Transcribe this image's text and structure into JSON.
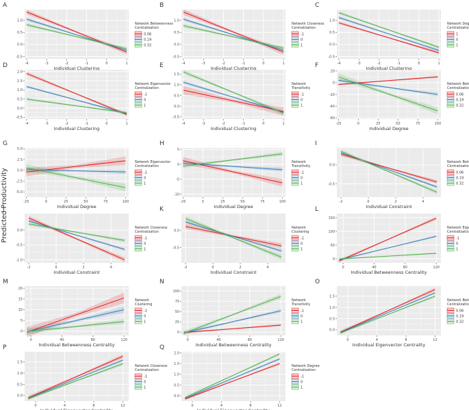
{
  "figure": {
    "ylabel": "Predicted Productivity"
  },
  "chart_data": [
    {
      "id": "A",
      "type": "line",
      "xlabel": "Individual Clustering",
      "xlim": [
        -4.1,
        1.1
      ],
      "xticks": [
        -4,
        -3,
        -2,
        -1,
        0,
        1
      ],
      "ylim": [
        -0.6,
        1.45
      ],
      "yticks": [
        -0.5,
        0.0,
        0.5,
        1.0
      ],
      "legend_title": "Network Betweenness Centralization",
      "series": [
        {
          "name": "0.06",
          "x": [
            -4,
            1
          ],
          "y": [
            1.35,
            -0.32
          ],
          "band": 0.1
        },
        {
          "name": "0.19",
          "x": [
            -4,
            1
          ],
          "y": [
            1.05,
            -0.25
          ],
          "band": 0.07
        },
        {
          "name": "0.32",
          "x": [
            -4,
            1
          ],
          "y": [
            0.82,
            -0.18
          ],
          "band": 0.07
        }
      ]
    },
    {
      "id": "B",
      "type": "line",
      "xlabel": "Individual Clustering",
      "xlim": [
        -4.1,
        1.1
      ],
      "xticks": [
        -4,
        -3,
        -2,
        -1,
        0,
        1
      ],
      "ylim": [
        -0.6,
        1.45
      ],
      "yticks": [
        -0.5,
        0.0,
        0.5,
        1.0
      ],
      "legend_title": "Network Closeness Centralization",
      "series": [
        {
          "name": "-1",
          "x": [
            -4,
            1
          ],
          "y": [
            1.35,
            -0.32
          ],
          "band": 0.12
        },
        {
          "name": "0",
          "x": [
            -4,
            1
          ],
          "y": [
            1.05,
            -0.25
          ],
          "band": 0.07
        },
        {
          "name": "1",
          "x": [
            -4,
            1
          ],
          "y": [
            0.78,
            -0.15
          ],
          "band": 0.08
        }
      ]
    },
    {
      "id": "C",
      "type": "line",
      "xlabel": "Individual Clustering",
      "xlim": [
        -4.1,
        1.1
      ],
      "xticks": [
        -4,
        -3,
        -2,
        -1,
        0,
        1
      ],
      "ylim": [
        -0.6,
        1.45
      ],
      "yticks": [
        -0.5,
        0.0,
        0.5,
        1.0
      ],
      "legend_title": "Network Degree Centralization",
      "series": [
        {
          "name": "1",
          "x": [
            -4,
            1
          ],
          "y": [
            0.9,
            -0.35
          ],
          "band": 0.06
        },
        {
          "name": "0",
          "x": [
            -4,
            1
          ],
          "y": [
            1.12,
            -0.25
          ],
          "band": 0.06
        },
        {
          "name": "1",
          "x": [
            -4,
            1
          ],
          "y": [
            1.32,
            -0.12
          ],
          "band": 0.06
        }
      ]
    },
    {
      "id": "D",
      "type": "line",
      "xlabel": "Individual Clustering",
      "xlim": [
        -4.1,
        1.1
      ],
      "xticks": [
        -4,
        -3,
        -2,
        -1,
        0,
        1
      ],
      "ylim": [
        -0.6,
        2.1
      ],
      "yticks": [
        -0.5,
        0.0,
        0.5,
        1.0,
        1.5,
        2.0
      ],
      "legend_title": "Network Eigenvector Centralization",
      "series": [
        {
          "name": "-1",
          "x": [
            -4,
            1
          ],
          "y": [
            1.9,
            -0.35
          ],
          "band": 0.1
        },
        {
          "name": "0",
          "x": [
            -4,
            1
          ],
          "y": [
            1.18,
            -0.3
          ],
          "band": 0.07
        },
        {
          "name": "1",
          "x": [
            -4,
            1
          ],
          "y": [
            0.5,
            -0.25
          ],
          "band": 0.08
        }
      ]
    },
    {
      "id": "E",
      "type": "line",
      "xlabel": "Individual Clustering",
      "xlim": [
        -4.1,
        1.1
      ],
      "xticks": [
        -4,
        -3,
        -2,
        -1,
        0,
        1
      ],
      "ylim": [
        -0.6,
        1.7
      ],
      "yticks": [
        -0.5,
        0.0,
        0.5,
        1.0,
        1.5
      ],
      "legend_title": "Network Transitivity",
      "series": [
        {
          "name": "-1",
          "x": [
            -4,
            1
          ],
          "y": [
            0.75,
            -0.25
          ],
          "band": 0.2
        },
        {
          "name": "0",
          "x": [
            -4,
            1
          ],
          "y": [
            1.12,
            -0.28
          ],
          "band": 0.08
        },
        {
          "name": "1",
          "x": [
            -4,
            1
          ],
          "y": [
            1.6,
            -0.32
          ],
          "band": 0.1
        }
      ]
    },
    {
      "id": "F",
      "type": "line",
      "xlabel": "Individual Degree",
      "xlim": [
        -27,
        104
      ],
      "xticks": [
        -25,
        0,
        25,
        50,
        75,
        100
      ],
      "ylim": [
        -62,
        22
      ],
      "yticks": [
        -60,
        -40,
        -20,
        0,
        20
      ],
      "legend_title": "Network Betweenness Centralization",
      "series": [
        {
          "name": "0.06",
          "x": [
            -25,
            100
          ],
          "y": [
            -3,
            10
          ],
          "band": 2
        },
        {
          "name": "0.19",
          "x": [
            -25,
            100
          ],
          "y": [
            4,
            -20
          ],
          "band": 3
        },
        {
          "name": "0.32",
          "x": [
            -25,
            100
          ],
          "y": [
            10,
            -48
          ],
          "band": 6
        }
      ]
    },
    {
      "id": "G",
      "type": "line",
      "xlabel": "Individual Degree",
      "xlim": [
        -27,
        104
      ],
      "xticks": [
        -25,
        0,
        25,
        50,
        75,
        100
      ],
      "ylim": [
        -6.2,
        5.2
      ],
      "yticks": [
        -5.0,
        -2.5,
        0.0,
        2.5,
        5.0
      ],
      "legend_title": "Network Eigenvector Centralization",
      "series": [
        {
          "name": "-1",
          "x": [
            -25,
            100
          ],
          "y": [
            -0.4,
            2.2
          ],
          "band": 1.0
        },
        {
          "name": "0",
          "x": [
            -25,
            100
          ],
          "y": [
            0.15,
            -0.35
          ],
          "band": 0.5
        },
        {
          "name": "1",
          "x": [
            -25,
            100
          ],
          "y": [
            0.6,
            -4.0
          ],
          "band": 0.9
        }
      ]
    },
    {
      "id": "H",
      "type": "line",
      "xlabel": "Individual Degree",
      "xlim": [
        -27,
        104
      ],
      "xticks": [
        -25,
        0,
        25,
        50,
        75,
        100
      ],
      "ylim": [
        -11,
        5.5
      ],
      "yticks": [
        -10,
        -5,
        0,
        5
      ],
      "legend_title": "Network Transitivity",
      "series": [
        {
          "name": "-1",
          "x": [
            -25,
            100
          ],
          "y": [
            1.2,
            -6.2
          ],
          "band": 1.3
        },
        {
          "name": "0",
          "x": [
            -25,
            100
          ],
          "y": [
            0.4,
            -1.8
          ],
          "band": 0.7
        },
        {
          "name": "1",
          "x": [
            -25,
            100
          ],
          "y": [
            -0.6,
            3.5
          ],
          "band": 0.7
        }
      ]
    },
    {
      "id": "I",
      "type": "line",
      "xlabel": "Individual Constraint",
      "xlim": [
        -2.3,
        5.3
      ],
      "xticks": [
        -2,
        0,
        2,
        4
      ],
      "ylim": [
        -0.85,
        0.45
      ],
      "yticks": [
        -0.5,
        0.0
      ],
      "legend_title": "Network Betweenness Centralization",
      "series": [
        {
          "name": "0.06",
          "x": [
            -2,
            5
          ],
          "y": [
            0.28,
            -0.45
          ],
          "band": 0.05
        },
        {
          "name": "0.19",
          "x": [
            -2,
            5
          ],
          "y": [
            0.32,
            -0.58
          ],
          "band": 0.04
        },
        {
          "name": "0.32",
          "x": [
            -2,
            5
          ],
          "y": [
            0.36,
            -0.72
          ],
          "band": 0.05
        }
      ]
    },
    {
      "id": "J",
      "type": "line",
      "xlabel": "Individual Constraint",
      "xlim": [
        -2.3,
        5.3
      ],
      "xticks": [
        -2,
        0,
        2,
        4
      ],
      "ylim": [
        -1.1,
        0.55
      ],
      "yticks": [
        -1.0,
        -0.5,
        0.0
      ],
      "legend_title": "Network Closeness Centralization",
      "series": [
        {
          "name": "-1",
          "x": [
            -2,
            5
          ],
          "y": [
            0.4,
            -1.0
          ],
          "band": 0.08
        },
        {
          "name": "0",
          "x": [
            -2,
            5
          ],
          "y": [
            0.3,
            -0.65
          ],
          "band": 0.05
        },
        {
          "name": "1",
          "x": [
            -2,
            5
          ],
          "y": [
            0.2,
            -0.35
          ],
          "band": 0.06
        }
      ]
    },
    {
      "id": "K",
      "type": "line",
      "xlabel": "Individual Constraint",
      "xlim": [
        -2.3,
        5.3
      ],
      "xticks": [
        -2,
        0,
        2,
        4
      ],
      "ylim": [
        -0.95,
        0.5
      ],
      "yticks": [
        -0.5,
        0.0
      ],
      "legend_title": "Network Clustering",
      "series": [
        {
          "name": "-1",
          "x": [
            -2,
            5
          ],
          "y": [
            0.12,
            -0.45
          ],
          "band": 0.08
        },
        {
          "name": "0",
          "x": [
            -2,
            5
          ],
          "y": [
            0.25,
            -0.6
          ],
          "band": 0.05
        },
        {
          "name": "1",
          "x": [
            -2,
            5
          ],
          "y": [
            0.35,
            -0.78
          ],
          "band": 0.08
        }
      ]
    },
    {
      "id": "L",
      "type": "line",
      "xlabel": "Individual Betweenness Centrality",
      "xlim": [
        -8,
        126
      ],
      "xticks": [
        0,
        40,
        80,
        120
      ],
      "ylim": [
        -15,
        165
      ],
      "yticks": [
        0,
        50,
        100,
        150
      ],
      "legend_title": "Network Eigenvector Centralization",
      "series": [
        {
          "name": "-1",
          "x": [
            -5,
            120
          ],
          "y": [
            -8,
            148
          ],
          "band": 6
        },
        {
          "name": "0",
          "x": [
            -5,
            120
          ],
          "y": [
            -4,
            82
          ],
          "band": 4
        },
        {
          "name": "1",
          "x": [
            -5,
            120
          ],
          "y": [
            -1,
            20
          ],
          "band": 3
        }
      ]
    },
    {
      "id": "M",
      "type": "line",
      "xlabel": "Individual Betweenness Centrality",
      "xlim": [
        -8,
        126
      ],
      "xticks": [
        0,
        40,
        80,
        120
      ],
      "ylim": [
        -2,
        21
      ],
      "yticks": [
        0,
        5,
        10,
        15,
        20
      ],
      "legend_title": "Network Clustering",
      "series": [
        {
          "name": "-1",
          "x": [
            -5,
            120
          ],
          "y": [
            -0.5,
            15.5
          ],
          "band": 2.5
        },
        {
          "name": "0",
          "x": [
            -5,
            120
          ],
          "y": [
            -0.3,
            10
          ],
          "band": 1.5
        },
        {
          "name": "1",
          "x": [
            -5,
            120
          ],
          "y": [
            -0.2,
            4.5
          ],
          "band": 1.2
        }
      ]
    },
    {
      "id": "N",
      "type": "line",
      "xlabel": "Individual Betweenness Centrality",
      "xlim": [
        -8,
        126
      ],
      "xticks": [
        0,
        40,
        80,
        120
      ],
      "ylim": [
        -8,
        112
      ],
      "yticks": [
        0,
        25,
        50,
        75,
        100
      ],
      "legend_title": "Network Transitivity",
      "series": [
        {
          "name": "-1",
          "x": [
            -5,
            120
          ],
          "y": [
            -1,
            17
          ],
          "band": 3
        },
        {
          "name": "0",
          "x": [
            -5,
            120
          ],
          "y": [
            -2,
            52
          ],
          "band": 4
        },
        {
          "name": "1",
          "x": [
            -5,
            120
          ],
          "y": [
            -3,
            87
          ],
          "band": 6
        }
      ]
    },
    {
      "id": "O",
      "type": "line",
      "xlabel": "Individual Eigenvector Centrality",
      "xlim": [
        -1.5,
        12.8
      ],
      "xticks": [
        0,
        4,
        8,
        12
      ],
      "ylim": [
        -0.25,
        1.95
      ],
      "yticks": [
        0.0,
        0.5,
        1.0,
        1.5
      ],
      "legend_title": "Network Betweenness Centralization",
      "series": [
        {
          "name": "0.06",
          "x": [
            -1,
            12
          ],
          "y": [
            -0.1,
            1.8
          ],
          "band": 0.08
        },
        {
          "name": "0.19",
          "x": [
            -1,
            12
          ],
          "y": [
            -0.12,
            1.65
          ],
          "band": 0.05
        },
        {
          "name": "0.32",
          "x": [
            -1,
            12
          ],
          "y": [
            -0.14,
            1.5
          ],
          "band": 0.06
        }
      ]
    },
    {
      "id": "P",
      "type": "line",
      "xlabel": "Individual Eigenvector Centrality",
      "xlim": [
        -1.5,
        12.8
      ],
      "xticks": [
        0,
        4,
        8,
        12
      ],
      "ylim": [
        -0.25,
        1.95
      ],
      "yticks": [
        0.0,
        0.5,
        1.0,
        1.5
      ],
      "legend_title": "Network Closeness Centralization",
      "series": [
        {
          "name": "-1",
          "x": [
            -1,
            12
          ],
          "y": [
            -0.1,
            1.75
          ],
          "band": 0.1
        },
        {
          "name": "0",
          "x": [
            -1,
            12
          ],
          "y": [
            -0.12,
            1.58
          ],
          "band": 0.05
        },
        {
          "name": "1",
          "x": [
            -1,
            12
          ],
          "y": [
            -0.14,
            1.42
          ],
          "band": 0.08
        }
      ]
    },
    {
      "id": "Q",
      "type": "line",
      "xlabel": "Individual Eigenvector Centrality",
      "xlim": [
        -1.5,
        12.8
      ],
      "xticks": [
        0,
        4,
        8,
        12
      ],
      "ylim": [
        -0.25,
        2.05
      ],
      "yticks": [
        0.0,
        0.5,
        1.0,
        1.5,
        2.0
      ],
      "legend_title": "Network Degree Centralization",
      "series": [
        {
          "name": "-1",
          "x": [
            -1,
            12
          ],
          "y": [
            -0.15,
            1.5
          ],
          "band": 0.06
        },
        {
          "name": "0",
          "x": [
            -1,
            12
          ],
          "y": [
            -0.12,
            1.72
          ],
          "band": 0.06
        },
        {
          "name": "1",
          "x": [
            -1,
            12
          ],
          "y": [
            -0.08,
            1.95
          ],
          "band": 0.06
        }
      ]
    }
  ],
  "colors": {
    "series": [
      "#e41a1c",
      "#377eb8",
      "#4daf4a"
    ],
    "panel_bg": "#ebebeb",
    "grid": "#ffffff",
    "text": "#333333",
    "tick": "#4d4d4d"
  }
}
